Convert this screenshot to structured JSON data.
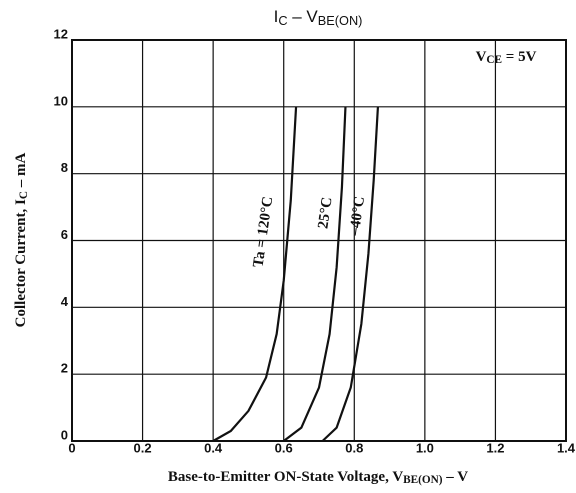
{
  "chart_data": {
    "type": "line",
    "title": [
      "I",
      "C",
      "  –  V",
      "BE(ON)"
    ],
    "x_label": [
      "Base-to-Emitter ON-State Voltage, V",
      "BE(ON)",
      " – V"
    ],
    "y_label": [
      "Collector Current, I",
      "C",
      " – mA"
    ],
    "condition": [
      "V",
      "CE",
      " = 5V"
    ],
    "annotations": [
      "Ta = 120°C",
      "25°C",
      "–40°C"
    ],
    "xlim": [
      0,
      1.4
    ],
    "ylim": [
      0,
      12
    ],
    "xticks": [
      0,
      0.2,
      0.4,
      0.6,
      0.8,
      {
        "value": 1,
        "label": "1.0"
      },
      1.2,
      1.4
    ],
    "yticks": [
      0,
      2,
      4,
      6,
      8,
      10,
      12
    ],
    "grid": true,
    "series": [
      {
        "name": "Ta = 120°C",
        "color": "#111111",
        "x": [
          0.4,
          0.45,
          0.5,
          0.55,
          0.58,
          0.6,
          0.62,
          0.635
        ],
        "values": [
          0,
          0.3,
          0.9,
          1.9,
          3.2,
          4.8,
          7.2,
          10
        ]
      },
      {
        "name": "25°C",
        "color": "#111111",
        "x": [
          0.6,
          0.65,
          0.7,
          0.73,
          0.75,
          0.765,
          0.775
        ],
        "values": [
          0,
          0.4,
          1.6,
          3.2,
          5.2,
          7.6,
          10
        ]
      },
      {
        "name": "–40°C",
        "color": "#111111",
        "x": [
          0.71,
          0.75,
          0.79,
          0.82,
          0.84,
          0.855,
          0.867
        ],
        "values": [
          0,
          0.4,
          1.6,
          3.5,
          5.6,
          7.8,
          10
        ]
      }
    ]
  }
}
